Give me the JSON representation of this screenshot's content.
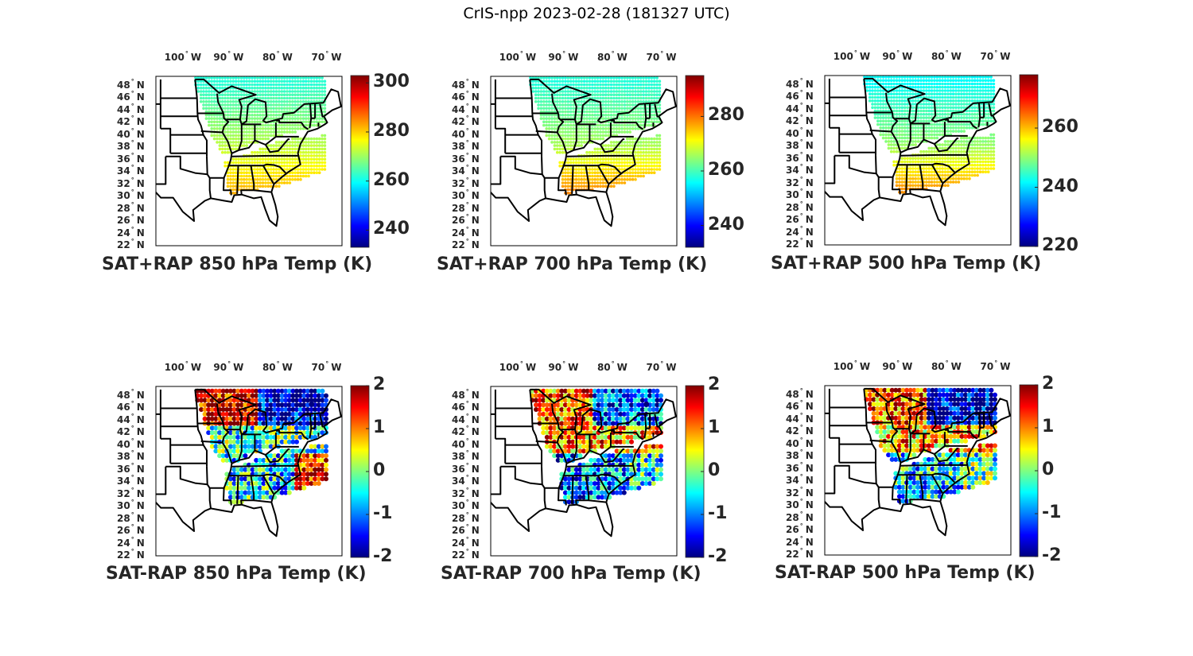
{
  "figure_title": "CrIS-npp 2023-02-28 (181327 UTC)",
  "lon_ticks": [
    {
      "value": -100,
      "num": "100",
      "deg": "°",
      "hemi": "W"
    },
    {
      "value": -90,
      "num": "90",
      "deg": "°",
      "hemi": "W"
    },
    {
      "value": -80,
      "num": "80",
      "deg": "°",
      "hemi": "W"
    },
    {
      "value": -70,
      "num": "70",
      "deg": "°",
      "hemi": "W"
    }
  ],
  "lat_ticks": [
    {
      "value": 48,
      "num": "48",
      "deg": "°",
      "hemi": "N"
    },
    {
      "value": 46,
      "num": "46",
      "deg": "°",
      "hemi": "N"
    },
    {
      "value": 44,
      "num": "44",
      "deg": "°",
      "hemi": "N"
    },
    {
      "value": 42,
      "num": "42",
      "deg": "°",
      "hemi": "N"
    },
    {
      "value": 40,
      "num": "40",
      "deg": "°",
      "hemi": "N"
    },
    {
      "value": 38,
      "num": "38",
      "deg": "°",
      "hemi": "N"
    },
    {
      "value": 36,
      "num": "36",
      "deg": "°",
      "hemi": "N"
    },
    {
      "value": 34,
      "num": "34",
      "deg": "°",
      "hemi": "N"
    },
    {
      "value": 32,
      "num": "32",
      "deg": "°",
      "hemi": "N"
    },
    {
      "value": 30,
      "num": "30",
      "deg": "°",
      "hemi": "N"
    },
    {
      "value": 28,
      "num": "28",
      "deg": "°",
      "hemi": "N"
    },
    {
      "value": 26,
      "num": "26",
      "deg": "°",
      "hemi": "N"
    },
    {
      "value": 24,
      "num": "24",
      "deg": "°",
      "hemi": "N"
    },
    {
      "value": 22,
      "num": "22",
      "deg": "°",
      "hemi": "N"
    }
  ],
  "colormap": "jet",
  "chart_data": [
    {
      "type": "heatmap",
      "title": "SAT+RAP 850 hPa Temp (K)",
      "kind": "total",
      "level_hPa": 850,
      "colorbar": {
        "range": [
          233,
          303
        ],
        "ticks": [
          "240",
          "260",
          "280",
          "300"
        ],
        "tick_values": [
          240,
          260,
          280,
          300
        ]
      },
      "xlabel": "",
      "ylabel": "",
      "xlim": [
        -105,
        -67
      ],
      "ylim": [
        22,
        49.5
      ],
      "field": {
        "north": 262,
        "mid": 272,
        "south": 283
      }
    },
    {
      "type": "heatmap",
      "title": "SAT+RAP 700 hPa Temp (K)",
      "kind": "total",
      "level_hPa": 700,
      "colorbar": {
        "range": [
          232,
          295
        ],
        "ticks": [
          "240",
          "260",
          "280"
        ],
        "tick_values": [
          240,
          260,
          280
        ]
      },
      "xlabel": "",
      "ylabel": "",
      "xlim": [
        -105,
        -67
      ],
      "ylim": [
        22,
        49.5
      ],
      "field": {
        "north": 258,
        "mid": 266,
        "south": 280
      }
    },
    {
      "type": "heatmap",
      "title": "SAT+RAP 500 hPa Temp (K)",
      "kind": "total",
      "level_hPa": 500,
      "colorbar": {
        "range": [
          220,
          278
        ],
        "ticks": [
          "220",
          "240",
          "260"
        ],
        "tick_values": [
          220,
          240,
          260
        ]
      },
      "xlabel": "",
      "ylabel": "",
      "xlim": [
        -105,
        -67
      ],
      "ylim": [
        22,
        49.5
      ],
      "field": {
        "north": 242,
        "mid": 250,
        "south": 264
      }
    },
    {
      "type": "heatmap",
      "title": "SAT-RAP 850 hPa Temp (K)",
      "kind": "diff",
      "level_hPa": 850,
      "colorbar": {
        "range": [
          -2,
          2
        ],
        "ticks": [
          "-2",
          "-1",
          "0",
          "1",
          "2"
        ],
        "tick_values": [
          -2,
          -1,
          0,
          1,
          2
        ]
      },
      "xlabel": "",
      "ylabel": "",
      "xlim": [
        -105,
        -67
      ],
      "ylim": [
        22,
        49.5
      ],
      "field": {
        "northwest": 1.8,
        "northeast": -1.8,
        "mid": -0.3,
        "south": -0.6,
        "southeast": 1.5
      }
    },
    {
      "type": "heatmap",
      "title": "SAT-RAP 700 hPa Temp (K)",
      "kind": "diff",
      "level_hPa": 700,
      "colorbar": {
        "range": [
          -2,
          2
        ],
        "ticks": [
          "-2",
          "-1",
          "0",
          "1",
          "2"
        ],
        "tick_values": [
          -2,
          -1,
          0,
          1,
          2
        ]
      },
      "xlabel": "",
      "ylabel": "",
      "xlim": [
        -105,
        -67
      ],
      "ylim": [
        22,
        49.5
      ],
      "field": {
        "northwest": 1.2,
        "northeast": -1.2,
        "mid": 1.0,
        "south": -1.0,
        "southeast": -0.5
      }
    },
    {
      "type": "heatmap",
      "title": "SAT-RAP 500 hPa Temp (K)",
      "kind": "diff",
      "level_hPa": 500,
      "colorbar": {
        "range": [
          -2,
          2
        ],
        "ticks": [
          "-2",
          "-1",
          "0",
          "1",
          "2"
        ],
        "tick_values": [
          -2,
          -1,
          0,
          1,
          2
        ]
      },
      "xlabel": "",
      "ylabel": "",
      "xlim": [
        -105,
        -67
      ],
      "ylim": [
        22,
        49.5
      ],
      "field": {
        "northwest": 1.3,
        "northeast": -1.8,
        "mid": 0.8,
        "south": -0.6,
        "southeast": -0.2
      }
    }
  ]
}
